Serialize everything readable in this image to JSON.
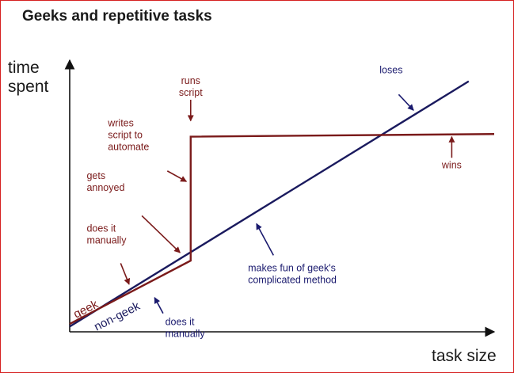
{
  "colors": {
    "geek": "#7a1a1a",
    "non_geek": "#1a1a5e",
    "axis": "#111111",
    "geek_annotation": "#7a1a1a",
    "non_geek_annotation": "#1a1a6e",
    "border": "#d62020"
  },
  "chart_data": {
    "type": "line",
    "title": "Geeks and repetitive tasks",
    "xlabel": "task size",
    "ylabel": [
      "time",
      "spent"
    ],
    "xlim": [
      0,
      100
    ],
    "ylim": [
      0,
      100
    ],
    "grid": false,
    "series": [
      {
        "name": "geek",
        "color_key": "geek",
        "points": [
          [
            0,
            3
          ],
          [
            28.5,
            27
          ],
          [
            28.5,
            74
          ],
          [
            100,
            75
          ]
        ]
      },
      {
        "name": "non-geek",
        "color_key": "non_geek",
        "points": [
          [
            0,
            2
          ],
          [
            94,
            95
          ]
        ]
      }
    ],
    "annotations": [
      {
        "lines": [
          "runs",
          "script"
        ],
        "color_key": "geek_annotation",
        "anchor": "middle",
        "text_at": [
          28.5,
          94
        ],
        "arrow_from": [
          28.5,
          88
        ],
        "arrow_to": [
          28.5,
          80
        ]
      },
      {
        "lines": [
          "writes",
          "script to",
          "automate"
        ],
        "color_key": "geek_annotation",
        "anchor": "start",
        "text_at": [
          9,
          78
        ],
        "arrow_from": [
          23,
          61
        ],
        "arrow_to": [
          27.5,
          57
        ]
      },
      {
        "lines": [
          "gets",
          "annoyed"
        ],
        "color_key": "geek_annotation",
        "anchor": "start",
        "text_at": [
          4,
          58
        ],
        "arrow_from": [
          17,
          44
        ],
        "arrow_to": [
          26,
          30
        ]
      },
      {
        "lines": [
          "does it",
          "manually"
        ],
        "color_key": "geek_annotation",
        "anchor": "start",
        "text_at": [
          4,
          38
        ],
        "arrow_from": [
          12,
          26
        ],
        "arrow_to": [
          14,
          18
        ]
      },
      {
        "lines": [
          "loses"
        ],
        "color_key": "non_geek_annotation",
        "anchor": "start",
        "text_at": [
          73,
          98
        ],
        "arrow_from": [
          77.5,
          90
        ],
        "arrow_to": [
          81,
          84
        ]
      },
      {
        "lines": [
          "wins"
        ],
        "color_key": "geek_annotation",
        "anchor": "middle",
        "text_at": [
          90,
          62
        ],
        "arrow_from": [
          90,
          66
        ],
        "arrow_to": [
          90,
          74
        ]
      },
      {
        "lines": [
          "makes fun of geek's",
          "complicated method"
        ],
        "color_key": "non_geek_annotation",
        "anchor": "start",
        "text_at": [
          42,
          23
        ],
        "arrow_from": [
          48,
          29
        ],
        "arrow_to": [
          44,
          41
        ]
      },
      {
        "lines": [
          "does it",
          "manually"
        ],
        "color_key": "non_geek_annotation",
        "anchor": "start",
        "text_at": [
          22.5,
          2.5
        ],
        "arrow_from": [
          22,
          7
        ],
        "arrow_to": [
          20,
          13
        ]
      }
    ]
  }
}
